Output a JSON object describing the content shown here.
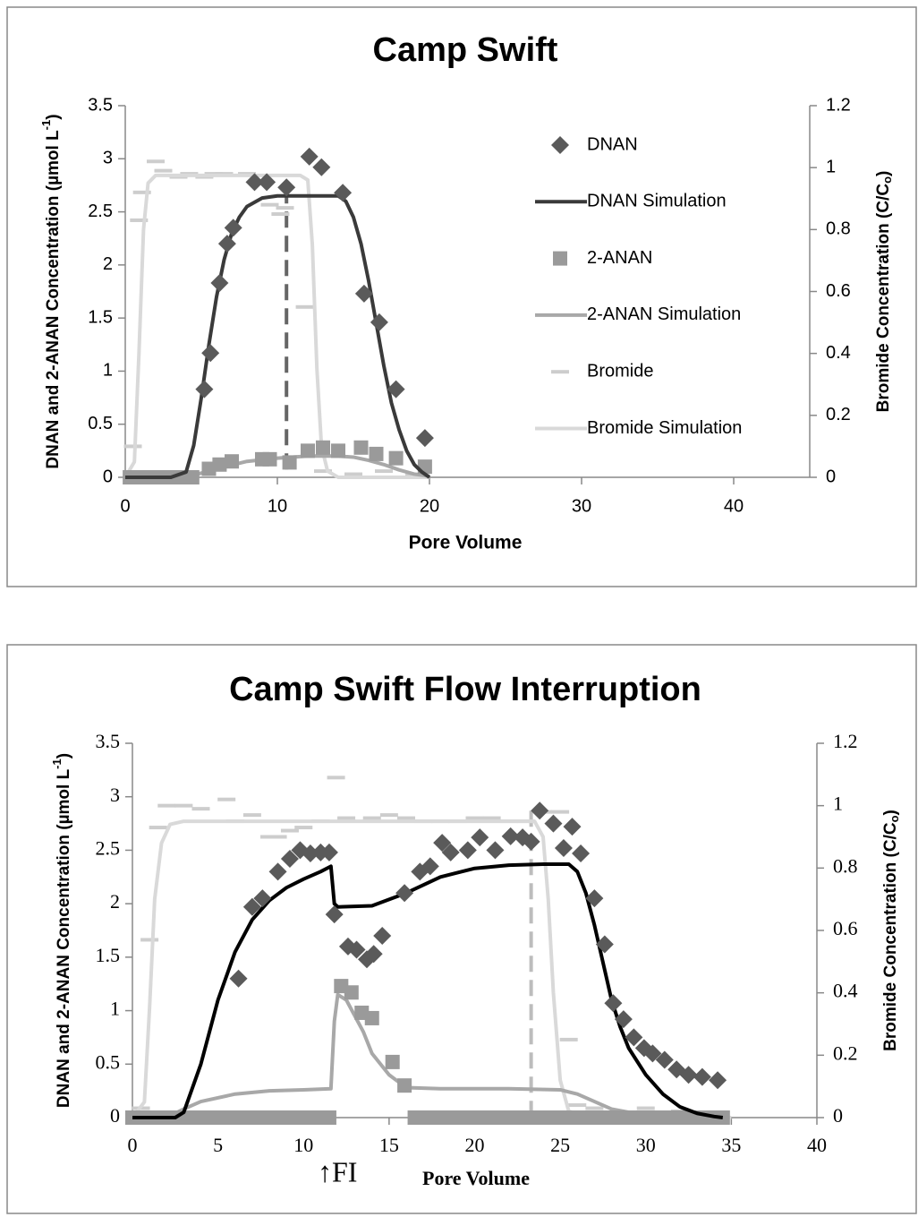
{
  "chart_data": [
    {
      "type": "scatter",
      "title": "Camp Swift",
      "x_label": "Pore Volume",
      "y_label": [
        "DNAN and 2-ANAN Concentration (µmol L",
        "-1",
        ")"
      ],
      "y2_label": [
        "Bromide Concentration (C/C",
        "o",
        ")"
      ],
      "xlim": [
        0,
        45
      ],
      "xticks": [
        0,
        10,
        20,
        30,
        40
      ],
      "ylim": [
        0,
        3.5
      ],
      "yticks": [
        0,
        0.5,
        1,
        1.5,
        2,
        2.5,
        3,
        3.5
      ],
      "y2lim": [
        0,
        1.2
      ],
      "y2ticks": [
        0,
        0.2,
        0.4,
        0.6,
        0.8,
        1,
        1.2
      ],
      "legend": "upper right",
      "series": [
        {
          "name": "DNAN",
          "style": "diamond",
          "color": "#5a5a5a",
          "x": [
            5.2,
            5.6,
            6.2,
            6.7,
            7.1,
            8.5,
            9.3,
            10.6,
            12.1,
            12.9,
            14.3,
            15.7,
            16.7,
            17.8,
            19.7
          ],
          "values": [
            0.83,
            1.17,
            1.83,
            2.2,
            2.35,
            2.78,
            2.78,
            2.73,
            3.02,
            2.92,
            2.68,
            1.73,
            1.46,
            0.83,
            0.37
          ]
        },
        {
          "name": "DNAN Simulation",
          "style": "line",
          "color": "#3a3a3a",
          "x": [
            0,
            3,
            4,
            4.5,
            5,
            5.5,
            6,
            6.5,
            7,
            7.5,
            8,
            9,
            10,
            12,
            14,
            14.5,
            15,
            15.5,
            16,
            16.5,
            17,
            17.5,
            18,
            18.5,
            19,
            19.5,
            20
          ],
          "values": [
            0,
            0,
            0.05,
            0.3,
            0.75,
            1.25,
            1.7,
            2.05,
            2.3,
            2.45,
            2.55,
            2.63,
            2.65,
            2.65,
            2.65,
            2.6,
            2.45,
            2.2,
            1.85,
            1.45,
            1.05,
            0.7,
            0.45,
            0.25,
            0.12,
            0.05,
            0
          ]
        },
        {
          "name": "2-ANAN",
          "style": "square",
          "color": "#9a9a9a",
          "x": [
            0.3,
            0.7,
            1.2,
            1.6,
            2,
            2.5,
            3,
            3.5,
            4,
            4.4,
            5.5,
            6.2,
            7,
            9,
            9.5,
            10.8,
            12,
            13,
            14,
            15.5,
            16.5,
            17.8,
            19.7
          ],
          "values": [
            0,
            0,
            0,
            0,
            0,
            0,
            0,
            0,
            0,
            0,
            0.08,
            0.12,
            0.15,
            0.17,
            0.17,
            0.14,
            0.25,
            0.28,
            0.25,
            0.28,
            0.22,
            0.18,
            0.1
          ]
        },
        {
          "name": "2-ANAN Simulation",
          "style": "line",
          "color": "#a8a8a8",
          "x": [
            0,
            4,
            6,
            8,
            10,
            12,
            14,
            15,
            16,
            17,
            18,
            19,
            20
          ],
          "values": [
            0,
            0,
            0.08,
            0.15,
            0.18,
            0.2,
            0.2,
            0.19,
            0.16,
            0.12,
            0.07,
            0.03,
            0.01
          ]
        },
        {
          "name": "Bromide",
          "style": "dash",
          "color": "#cdcdcd",
          "axis": "y2",
          "x": [
            0.5,
            0.9,
            1.1,
            2,
            2.5,
            3.5,
            4.2,
            5.2,
            5.8,
            6.5,
            8,
            9.5,
            10.2,
            10.5,
            11.8,
            13,
            15,
            17,
            19
          ],
          "values": [
            0.1,
            0.83,
            0.92,
            1.02,
            0.99,
            0.97,
            0.98,
            0.97,
            0.98,
            0.98,
            0.98,
            0.88,
            0.85,
            0.87,
            0.55,
            0.02,
            0.01,
            0.02,
            0.01
          ]
        },
        {
          "name": "Bromide Simulation",
          "style": "line",
          "color": "#d9d9d9",
          "axis": "y2",
          "x": [
            0,
            0.6,
            0.9,
            1.2,
            1.5,
            2,
            4,
            8,
            11.5,
            12,
            12.3,
            12.6,
            12.9,
            13.3,
            14,
            20
          ],
          "values": [
            0,
            0.05,
            0.4,
            0.8,
            0.95,
            0.975,
            0.975,
            0.975,
            0.975,
            0.96,
            0.75,
            0.35,
            0.1,
            0.02,
            0,
            0
          ]
        }
      ],
      "vlines": [
        {
          "x": 10.6,
          "y": 2.73,
          "color": "#666666"
        }
      ]
    },
    {
      "type": "scatter",
      "title": "Camp Swift Flow Interruption",
      "x_label": "Pore Volume",
      "y_label": [
        "DNAN and 2-ANAN Concentration (µmol L",
        "-1",
        ")"
      ],
      "y2_label": [
        "Bromide Concentration (C/C",
        "o",
        ")"
      ],
      "annotation": "↑FI",
      "xlim": [
        0,
        40
      ],
      "xticks": [
        0,
        5,
        10,
        15,
        20,
        25,
        30,
        35,
        40
      ],
      "ylim": [
        0,
        3.5
      ],
      "yticks": [
        0,
        0.5,
        1,
        1.5,
        2,
        2.5,
        3,
        3.5
      ],
      "y2lim": [
        0,
        1.2
      ],
      "y2ticks": [
        0,
        0.2,
        0.4,
        0.6,
        0.8,
        1,
        1.2
      ],
      "legend": null,
      "series": [
        {
          "name": "DNAN",
          "style": "diamond",
          "color": "#5a5a5a",
          "x": [
            6.2,
            7,
            7.6,
            8.5,
            9.2,
            9.8,
            10.4,
            11,
            11.5,
            11.8,
            12.6,
            13.1,
            13.7,
            14.1,
            14.6,
            15.9,
            16.8,
            17.4,
            18.1,
            18.6,
            19.6,
            20.3,
            21.2,
            22.1,
            22.8,
            23.3,
            23.8,
            24.6,
            25.2,
            25.7,
            26.2,
            27,
            27.6,
            28.1,
            28.7,
            29.3,
            29.9,
            30.4,
            31.1,
            31.8,
            32.5,
            33.3,
            34.2
          ],
          "values": [
            1.3,
            1.97,
            2.05,
            2.3,
            2.42,
            2.5,
            2.47,
            2.48,
            2.48,
            1.9,
            1.6,
            1.57,
            1.48,
            1.53,
            1.7,
            2.1,
            2.3,
            2.35,
            2.57,
            2.48,
            2.5,
            2.62,
            2.5,
            2.63,
            2.62,
            2.58,
            2.87,
            2.75,
            2.52,
            2.72,
            2.47,
            2.05,
            1.62,
            1.07,
            0.92,
            0.75,
            0.65,
            0.6,
            0.54,
            0.45,
            0.4,
            0.38,
            0.35
          ]
        },
        {
          "name": "DNAN Simulation",
          "style": "line",
          "color": "#000000",
          "x": [
            0,
            2.5,
            3,
            4,
            5,
            6,
            7,
            8,
            9,
            10,
            11,
            11.6,
            11.8,
            12,
            14,
            16,
            18,
            20,
            22,
            24,
            25.5,
            26,
            26.5,
            27,
            27.5,
            28,
            28.5,
            29,
            30,
            31,
            32,
            33,
            34,
            34.5
          ],
          "values": [
            0,
            0,
            0.05,
            0.5,
            1.1,
            1.55,
            1.85,
            2.03,
            2.15,
            2.23,
            2.3,
            2.35,
            2,
            1.97,
            1.98,
            2.1,
            2.25,
            2.33,
            2.36,
            2.37,
            2.37,
            2.3,
            2.1,
            1.8,
            1.45,
            1.1,
            0.85,
            0.65,
            0.4,
            0.22,
            0.1,
            0.04,
            0.01,
            0
          ]
        },
        {
          "name": "2-ANAN",
          "style": "square",
          "color": "#9a9a9a",
          "x": [
            0,
            0.5,
            1,
            1.5,
            2,
            2.5,
            3,
            3.5,
            4,
            4.5,
            5,
            5.5,
            6,
            6.5,
            7,
            7.5,
            8,
            8.5,
            9,
            9.5,
            10,
            10.5,
            11,
            11.5,
            12.2,
            12.8,
            13.4,
            14,
            15.2,
            15.9,
            16.5,
            17,
            17.5,
            18,
            18.5,
            19,
            19.5,
            20,
            20.5,
            21,
            21.5,
            22,
            22.5,
            23,
            23.5,
            24,
            24.5,
            25,
            25.5,
            26,
            26.5,
            27,
            27.5,
            28,
            28.5,
            29,
            29.5,
            30,
            30.5,
            31,
            31.5,
            32,
            32.5,
            33,
            33.5,
            34,
            34.5
          ],
          "values": [
            0,
            0,
            0,
            0,
            0,
            0,
            0,
            0,
            0,
            0,
            0,
            0,
            0,
            0,
            0,
            0,
            0,
            0,
            0,
            0,
            0,
            0,
            0,
            0,
            1.23,
            1.17,
            0.98,
            0.93,
            0.52,
            0.3,
            0,
            0,
            0,
            0,
            0,
            0,
            0,
            0,
            0,
            0,
            0,
            0,
            0,
            0,
            0,
            0,
            0,
            0,
            0,
            0,
            0,
            0,
            0,
            0,
            0,
            0,
            0,
            0,
            0,
            0,
            0,
            0,
            0,
            0,
            0,
            0,
            0
          ]
        },
        {
          "name": "2-ANAN Simulation",
          "style": "line",
          "color": "#a8a8a8",
          "x": [
            0,
            2,
            3,
            4,
            6,
            8,
            10,
            11.6,
            11.8,
            12,
            12.5,
            13,
            13.5,
            14,
            15,
            16,
            18,
            22,
            25,
            26,
            27,
            28,
            30,
            34
          ],
          "values": [
            0,
            0,
            0.08,
            0.15,
            0.22,
            0.25,
            0.26,
            0.27,
            0.9,
            1.15,
            1.1,
            0.95,
            0.8,
            0.6,
            0.4,
            0.28,
            0.27,
            0.27,
            0.26,
            0.22,
            0.15,
            0.08,
            0.02,
            0
          ]
        },
        {
          "name": "Bromide",
          "style": "dash",
          "color": "#cdcdcd",
          "axis": "y2",
          "x": [
            0.5,
            1,
            1.5,
            2,
            3,
            4,
            5.5,
            6,
            7,
            8,
            8.5,
            9.2,
            10,
            11,
            11.9,
            12.5,
            14,
            15,
            16,
            17,
            18,
            19,
            20,
            21,
            22,
            23,
            24,
            25,
            25.5,
            26,
            27,
            30,
            32,
            34
          ],
          "values": [
            0.03,
            0.57,
            0.93,
            1,
            1,
            0.99,
            1.02,
            0.95,
            0.97,
            0.9,
            0.9,
            0.92,
            0.93,
            0.95,
            1.09,
            0.96,
            0.96,
            0.97,
            0.96,
            0.95,
            0.95,
            0.95,
            0.96,
            0.96,
            0.95,
            0.95,
            0.98,
            0.98,
            0.25,
            0.04,
            0.03,
            0.03,
            0.02,
            0.01
          ]
        },
        {
          "name": "Bromide Simulation",
          "style": "line",
          "color": "#d9d9d9",
          "axis": "y2",
          "x": [
            0,
            0.7,
            1,
            1.3,
            1.7,
            2.2,
            3,
            10,
            20,
            23.5,
            24,
            24.3,
            24.6,
            25,
            25.5,
            27,
            35
          ],
          "values": [
            0,
            0.05,
            0.35,
            0.7,
            0.88,
            0.94,
            0.95,
            0.95,
            0.95,
            0.95,
            0.9,
            0.7,
            0.4,
            0.12,
            0.02,
            0,
            0
          ]
        }
      ],
      "vlines": [
        {
          "x": 23.3,
          "y": 2.87,
          "color": "#bdbdbd"
        }
      ]
    }
  ]
}
